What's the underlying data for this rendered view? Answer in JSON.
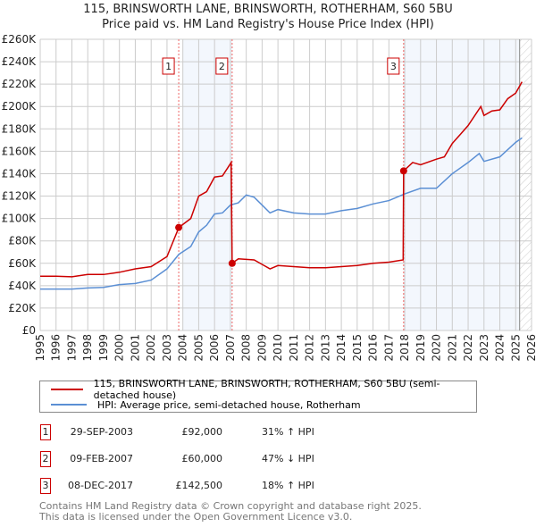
{
  "chart_data": {
    "type": "line",
    "title": "115, BRINSWORTH LANE, BRINSWORTH, ROTHERHAM, S60 5BU",
    "subtitle": "Price paid vs. HM Land Registry's House Price Index (HPI)",
    "xlim": [
      1995,
      2026
    ],
    "ylim": [
      0,
      260000
    ],
    "x_ticks": [
      "1995",
      "1996",
      "1997",
      "1998",
      "1999",
      "2000",
      "2001",
      "2002",
      "2003",
      "2004",
      "2005",
      "2006",
      "2007",
      "2008",
      "2009",
      "2010",
      "2011",
      "2012",
      "2013",
      "2014",
      "2015",
      "2016",
      "2017",
      "2018",
      "2019",
      "2020",
      "2021",
      "2022",
      "2023",
      "2024",
      "2025",
      "2026"
    ],
    "y_ticks": [
      "£0",
      "£20K",
      "£40K",
      "£60K",
      "£80K",
      "£100K",
      "£120K",
      "£140K",
      "£160K",
      "£180K",
      "£200K",
      "£220K",
      "£240K",
      "£260K"
    ],
    "grid": true,
    "series": [
      {
        "name": "115, BRINSWORTH LANE, BRINSWORTH, ROTHERHAM, S60 5BU (semi-detached house)",
        "color": "#cc0000",
        "x": [
          1995,
          1996,
          1997,
          1998,
          1999,
          2000,
          2001,
          2002,
          2003,
          2003.75,
          2004.5,
          2005,
          2005.5,
          2006,
          2006.5,
          2007.05,
          2007.11,
          2007.5,
          2008.5,
          2009,
          2009.5,
          2010,
          2011,
          2012,
          2013,
          2014,
          2015,
          2016,
          2017,
          2017.9,
          2017.93,
          2018.5,
          2019,
          2020,
          2020.5,
          2021,
          2021.5,
          2022,
          2022.8,
          2023,
          2023.5,
          2024,
          2024.5,
          2025,
          2025.4
        ],
        "y": [
          48500,
          48500,
          48000,
          50000,
          50000,
          52000,
          55000,
          57000,
          66000,
          92000,
          100000,
          120000,
          124000,
          137000,
          138000,
          150000,
          60000,
          64000,
          63000,
          59000,
          55000,
          58000,
          57000,
          56000,
          56000,
          57000,
          58000,
          60000,
          61000,
          63000,
          142500,
          150000,
          148000,
          153000,
          155000,
          167000,
          175000,
          183000,
          200000,
          192000,
          196000,
          197000,
          207000,
          212000,
          222000
        ]
      },
      {
        "name": "HPI: Average price, semi-detached house, Rotherham",
        "color": "#5b8fd4",
        "x": [
          1995,
          1996,
          1997,
          1998,
          1999,
          2000,
          2001,
          2002,
          2003,
          2003.75,
          2004.5,
          2005,
          2005.5,
          2006,
          2006.5,
          2007,
          2007.5,
          2008,
          2008.5,
          2009,
          2009.5,
          2010,
          2011,
          2012,
          2013,
          2014,
          2015,
          2016,
          2017,
          2018,
          2019,
          2020,
          2021,
          2022,
          2022.7,
          2023,
          2024,
          2025,
          2025.4
        ],
        "y": [
          37000,
          37000,
          37000,
          38000,
          38500,
          41000,
          42000,
          45000,
          55000,
          68000,
          75000,
          88000,
          94000,
          104000,
          105000,
          112000,
          114000,
          121000,
          119000,
          112000,
          105000,
          108000,
          105000,
          104000,
          104000,
          107000,
          109000,
          113000,
          116000,
          122000,
          127000,
          127000,
          140000,
          150000,
          158000,
          151000,
          155000,
          168000,
          172000
        ]
      }
    ],
    "sales": [
      {
        "label": "1",
        "x": 2003.74,
        "y": 92000
      },
      {
        "label": "2",
        "x": 2007.11,
        "y": 60000
      },
      {
        "label": "3",
        "x": 2017.93,
        "y": 142500
      }
    ],
    "legend": "below"
  },
  "legend": {
    "red": "115, BRINSWORTH LANE, BRINSWORTH, ROTHERHAM, S60 5BU (semi-detached house)",
    "blue": "HPI: Average price, semi-detached house, Rotherham"
  },
  "table": [
    {
      "num": "1",
      "date": "29-SEP-2003",
      "price": "£92,000",
      "hpi": "31% ↑ HPI"
    },
    {
      "num": "2",
      "date": "09-FEB-2007",
      "price": "£60,000",
      "hpi": "47% ↓ HPI"
    },
    {
      "num": "3",
      "date": "08-DEC-2017",
      "price": "£142,500",
      "hpi": "18% ↑ HPI"
    }
  ],
  "footer": {
    "line1": "Contains HM Land Registry data © Crown copyright and database right 2025.",
    "line2": "This data is licensed under the Open Government Licence v3.0."
  }
}
